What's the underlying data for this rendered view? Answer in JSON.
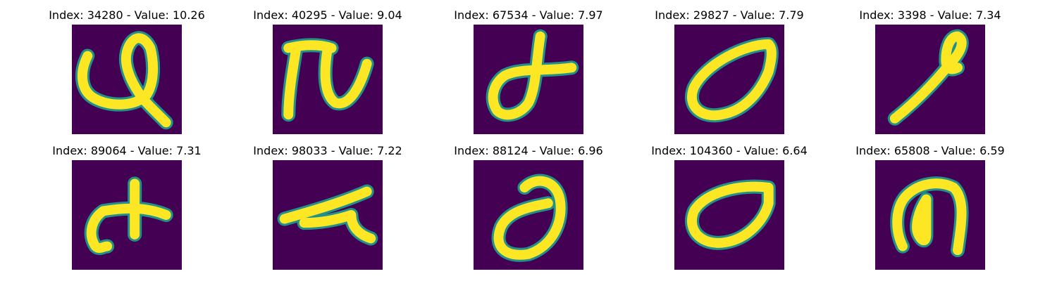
{
  "colors": {
    "background": "#440154",
    "mid": "#21918c",
    "high": "#fde725"
  },
  "panels": [
    {
      "title": "Index: 34280 - Value: 10.26",
      "glyph": "looped-swoosh"
    },
    {
      "title": "Index: 40295 - Value: 9.04",
      "glyph": "pi-like-stroke"
    },
    {
      "title": "Index: 67534 - Value: 7.97",
      "glyph": "crossed-loop"
    },
    {
      "title": "Index: 29827 - Value: 7.79",
      "glyph": "tilted-oval"
    },
    {
      "title": "Index: 3398 - Value: 7.34",
      "glyph": "diagonal-loop"
    },
    {
      "title": "Index: 89064 - Value: 7.31",
      "glyph": "plus-with-tail"
    },
    {
      "title": "Index: 98033 - Value: 7.22",
      "glyph": "flat-stroke-hook"
    },
    {
      "title": "Index: 88124 - Value: 6.96",
      "glyph": "curled-loop"
    },
    {
      "title": "Index: 104360 - Value: 6.64",
      "glyph": "wide-oval"
    },
    {
      "title": "Index: 65808 - Value: 6.59",
      "glyph": "n-loop"
    }
  ]
}
